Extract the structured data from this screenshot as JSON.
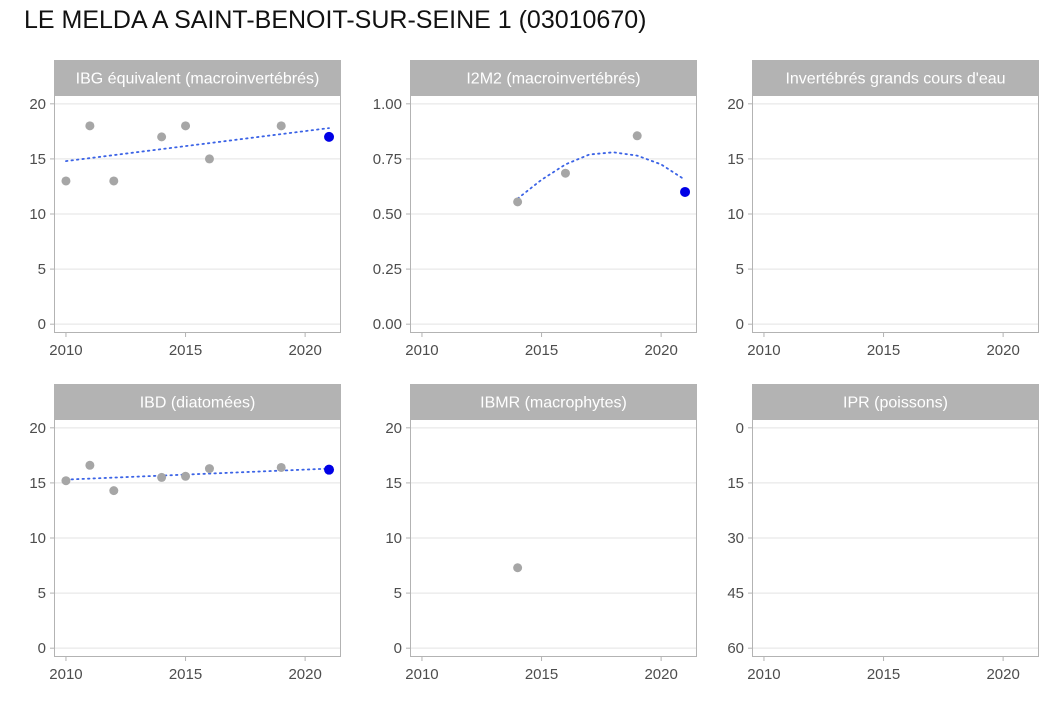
{
  "title": "LE MELDA A SAINT-BENOIT-SUR-SEINE 1 (03010670)",
  "colors": {
    "strip": "#b3b3b3",
    "panel_border": "#b3b3b3",
    "grid": "#e3e3e3",
    "point": "#a6a6a6",
    "latest_point": "#0000e6",
    "trend": "#3b63e6",
    "tick_text": "#4d4d4d"
  },
  "chart_data": [
    {
      "type": "scatter",
      "title": "IBG équivalent (macroinvertébrés)",
      "xlim": [
        2009.5,
        2021.5
      ],
      "ylim": [
        -0.8,
        20.8
      ],
      "x_ticks": [
        2010,
        2015,
        2020
      ],
      "x_tick_labels": [
        "2010",
        "2015",
        "2020"
      ],
      "y_ticks": [
        0,
        5,
        10,
        15,
        20
      ],
      "y_tick_labels": [
        "0",
        "5",
        "10",
        "15",
        "20"
      ],
      "y_reversed": false,
      "grid": true,
      "points": [
        {
          "x": 2010,
          "y": 13
        },
        {
          "x": 2011,
          "y": 18
        },
        {
          "x": 2012,
          "y": 13
        },
        {
          "x": 2014,
          "y": 17
        },
        {
          "x": 2015,
          "y": 18
        },
        {
          "x": 2016,
          "y": 15
        },
        {
          "x": 2019,
          "y": 18
        }
      ],
      "latest_point": {
        "x": 2021,
        "y": 17
      },
      "trend": [
        {
          "x": 2010,
          "y": 14.8
        },
        {
          "x": 2021,
          "y": 17.8
        }
      ]
    },
    {
      "type": "scatter",
      "title": "I2M2 (macroinvertébrés)",
      "xlim": [
        2009.5,
        2021.5
      ],
      "ylim": [
        -0.04,
        1.04
      ],
      "x_ticks": [
        2010,
        2015,
        2020
      ],
      "x_tick_labels": [
        "2010",
        "2015",
        "2020"
      ],
      "y_ticks": [
        0,
        0.25,
        0.5,
        0.75,
        1
      ],
      "y_tick_labels": [
        "0.00",
        "0.25",
        "0.50",
        "0.75",
        "1.00"
      ],
      "y_reversed": false,
      "grid": true,
      "points": [
        {
          "x": 2014,
          "y": 0.555
        },
        {
          "x": 2016,
          "y": 0.685
        },
        {
          "x": 2019,
          "y": 0.855
        }
      ],
      "latest_point": {
        "x": 2021,
        "y": 0.6
      },
      "trend": [
        {
          "x": 2014,
          "y": 0.57
        },
        {
          "x": 2015,
          "y": 0.655
        },
        {
          "x": 2016,
          "y": 0.725
        },
        {
          "x": 2017,
          "y": 0.77
        },
        {
          "x": 2018,
          "y": 0.78
        },
        {
          "x": 2019,
          "y": 0.765
        },
        {
          "x": 2020,
          "y": 0.725
        },
        {
          "x": 2021,
          "y": 0.655
        }
      ]
    },
    {
      "type": "scatter",
      "title": "Invertébrés grands cours d'eau",
      "xlim": [
        2009.5,
        2021.5
      ],
      "ylim": [
        -0.8,
        20.8
      ],
      "x_ticks": [
        2010,
        2015,
        2020
      ],
      "x_tick_labels": [
        "2010",
        "2015",
        "2020"
      ],
      "y_ticks": [
        0,
        5,
        10,
        15,
        20
      ],
      "y_tick_labels": [
        "0",
        "5",
        "10",
        "15",
        "20"
      ],
      "y_reversed": false,
      "grid": true,
      "points": [],
      "latest_point": null,
      "trend": []
    },
    {
      "type": "scatter",
      "title": "IBD (diatomées)",
      "xlim": [
        2009.5,
        2021.5
      ],
      "ylim": [
        -0.8,
        20.8
      ],
      "x_ticks": [
        2010,
        2015,
        2020
      ],
      "x_tick_labels": [
        "2010",
        "2015",
        "2020"
      ],
      "y_ticks": [
        0,
        5,
        10,
        15,
        20
      ],
      "y_tick_labels": [
        "0",
        "5",
        "10",
        "15",
        "20"
      ],
      "y_reversed": false,
      "grid": true,
      "points": [
        {
          "x": 2010,
          "y": 15.2
        },
        {
          "x": 2011,
          "y": 16.6
        },
        {
          "x": 2012,
          "y": 14.3
        },
        {
          "x": 2014,
          "y": 15.5
        },
        {
          "x": 2015,
          "y": 15.6
        },
        {
          "x": 2016,
          "y": 16.3
        },
        {
          "x": 2019,
          "y": 16.4
        }
      ],
      "latest_point": {
        "x": 2021,
        "y": 16.2
      },
      "trend": [
        {
          "x": 2010,
          "y": 15.3
        },
        {
          "x": 2021,
          "y": 16.3
        }
      ]
    },
    {
      "type": "scatter",
      "title": "IBMR (macrophytes)",
      "xlim": [
        2009.5,
        2021.5
      ],
      "ylim": [
        -0.8,
        20.8
      ],
      "x_ticks": [
        2010,
        2015,
        2020
      ],
      "x_tick_labels": [
        "2010",
        "2015",
        "2020"
      ],
      "y_ticks": [
        0,
        5,
        10,
        15,
        20
      ],
      "y_tick_labels": [
        "0",
        "5",
        "10",
        "15",
        "20"
      ],
      "y_reversed": false,
      "grid": true,
      "points": [
        {
          "x": 2014,
          "y": 7.3
        }
      ],
      "latest_point": null,
      "trend": []
    },
    {
      "type": "scatter",
      "title": "IPR (poissons)",
      "xlim": [
        2009.5,
        2021.5
      ],
      "ylim": [
        -2.4,
        62.4
      ],
      "x_ticks": [
        2010,
        2015,
        2020
      ],
      "x_tick_labels": [
        "2010",
        "2015",
        "2020"
      ],
      "y_ticks": [
        0,
        15,
        30,
        45,
        60
      ],
      "y_tick_labels": [
        "0",
        "15",
        "30",
        "45",
        "60"
      ],
      "y_reversed": true,
      "grid": true,
      "points": [],
      "latest_point": null,
      "trend": []
    }
  ]
}
